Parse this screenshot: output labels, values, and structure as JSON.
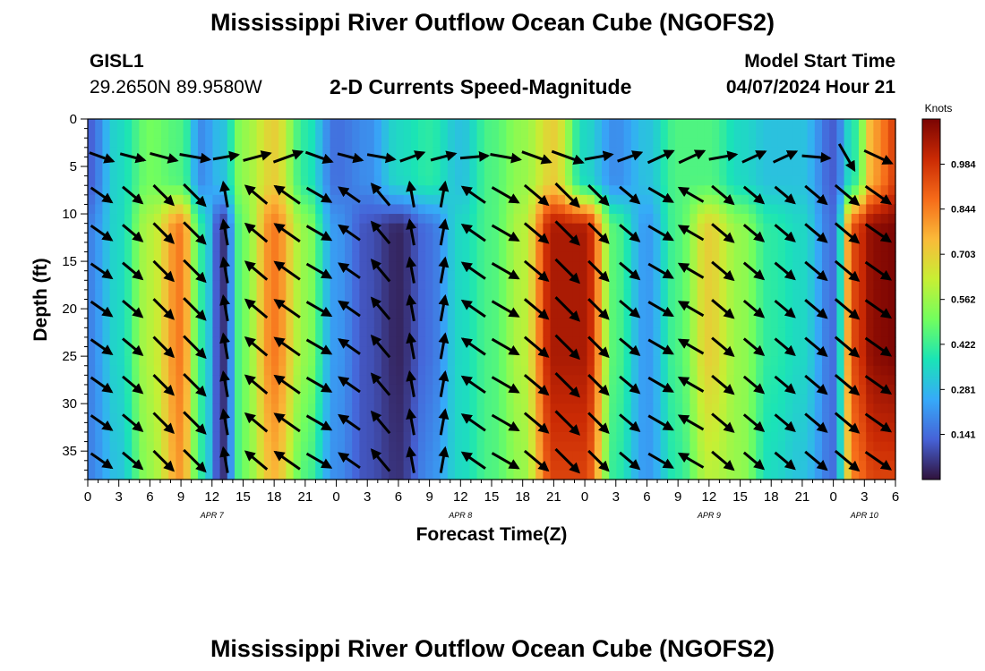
{
  "header": {
    "title": "Mississippi River Outflow Ocean Cube (NGOFS2)",
    "station_id": "GISL1",
    "station_coords": "29.2650N  89.9580W",
    "plot_title": "2-D Currents Speed-Magnitude",
    "model_start_label": "Model Start Time",
    "model_start_value": "04/07/2024 Hour 21"
  },
  "footer": {
    "title": "Mississippi River Outflow Ocean Cube (NGOFS2)"
  },
  "chart_data": {
    "type": "heatmap",
    "title": "2-D Currents Speed-Magnitude",
    "xlabel": "Forecast Time(Z)",
    "ylabel": "Depth (ft)",
    "x_unit": "hours since 2024-04-07 00Z",
    "xlim": [
      0,
      78
    ],
    "ylim": [
      0,
      38
    ],
    "y_inverted": true,
    "x_tick_labels": [
      "0",
      "3",
      "6",
      "9",
      "12",
      "15",
      "18",
      "21",
      "0",
      "3",
      "6",
      "9",
      "12",
      "15",
      "18",
      "21",
      "0",
      "3",
      "6",
      "9",
      "12",
      "15",
      "18",
      "21",
      "0",
      "3",
      "6"
    ],
    "y_ticks": [
      0,
      5,
      10,
      15,
      20,
      25,
      30,
      35
    ],
    "date_labels": [
      {
        "label": "APR 7",
        "hour": 12
      },
      {
        "label": "APR 8",
        "hour": 36
      },
      {
        "label": "APR 9",
        "hour": 60
      },
      {
        "label": "APR 10",
        "hour": 75
      }
    ],
    "colorbar": {
      "unit": "Knots",
      "min": 0,
      "max": 1.125,
      "ticks": [
        0.141,
        0.281,
        0.422,
        0.562,
        0.703,
        0.844,
        0.984
      ],
      "colors": [
        "#30123b",
        "#4662d7",
        "#36aaf9",
        "#1ae4b6",
        "#72fe5e",
        "#c7ef34",
        "#faba39",
        "#f66b19",
        "#ca2a04",
        "#7a0403"
      ]
    },
    "speed_sections": {
      "hours": [
        0,
        3,
        6,
        9,
        11,
        13,
        15,
        18,
        21,
        24,
        27,
        30,
        33,
        36,
        39,
        42,
        45,
        48,
        51,
        54,
        57,
        60,
        63,
        66,
        69,
        72,
        74,
        76,
        78
      ],
      "surface_knots": [
        0.12,
        0.35,
        0.5,
        0.45,
        0.2,
        0.3,
        0.55,
        0.7,
        0.4,
        0.15,
        0.2,
        0.35,
        0.4,
        0.3,
        0.45,
        0.55,
        0.7,
        0.35,
        0.2,
        0.3,
        0.45,
        0.45,
        0.35,
        0.3,
        0.3,
        0.12,
        0.4,
        0.8,
        0.95
      ],
      "mid_knots": [
        0.18,
        0.35,
        0.6,
        0.85,
        0.4,
        0.05,
        0.5,
        0.85,
        0.55,
        0.22,
        0.1,
        0.03,
        0.15,
        0.35,
        0.45,
        0.6,
        1.05,
        1.05,
        0.45,
        0.22,
        0.45,
        0.7,
        0.55,
        0.4,
        0.35,
        0.15,
        0.95,
        1.1,
        1.12
      ],
      "deep_knots": [
        0.18,
        0.3,
        0.55,
        0.8,
        0.4,
        0.05,
        0.5,
        0.75,
        0.45,
        0.2,
        0.1,
        0.05,
        0.2,
        0.35,
        0.45,
        0.55,
        0.95,
        0.95,
        0.4,
        0.22,
        0.4,
        0.6,
        0.55,
        0.35,
        0.3,
        0.15,
        0.85,
        0.95,
        0.95
      ]
    },
    "vectors": {
      "hours": [
        0,
        3,
        6,
        9,
        12,
        15,
        18,
        21,
        24,
        27,
        30,
        33,
        36,
        39,
        42,
        45,
        48,
        51,
        54,
        57,
        60,
        63,
        66,
        69,
        72,
        75
      ],
      "depths": [
        4,
        8,
        12,
        16,
        20,
        24,
        28,
        32,
        36
      ],
      "surface_angle_deg": [
        20,
        15,
        15,
        10,
        -10,
        -15,
        -20,
        20,
        15,
        10,
        -20,
        -15,
        -5,
        10,
        20,
        20,
        -10,
        -20,
        -25,
        -25,
        -10,
        -25,
        -25,
        5,
        60,
        25
      ],
      "lower_angle_deg": [
        35,
        40,
        45,
        45,
        -100,
        -140,
        -145,
        30,
        -145,
        -130,
        -100,
        -80,
        -145,
        30,
        40,
        45,
        45,
        40,
        30,
        -150,
        40,
        40,
        40,
        40,
        40,
        35
      ],
      "speed_knots": [
        0.5,
        0.5,
        0.6,
        0.7,
        0.5,
        0.6,
        0.7,
        0.6,
        0.5,
        0.6,
        0.5,
        0.5,
        0.6,
        0.7,
        0.7,
        0.8,
        0.6,
        0.5,
        0.6,
        0.6,
        0.6,
        0.5,
        0.5,
        0.6,
        0.7,
        0.7
      ]
    }
  }
}
